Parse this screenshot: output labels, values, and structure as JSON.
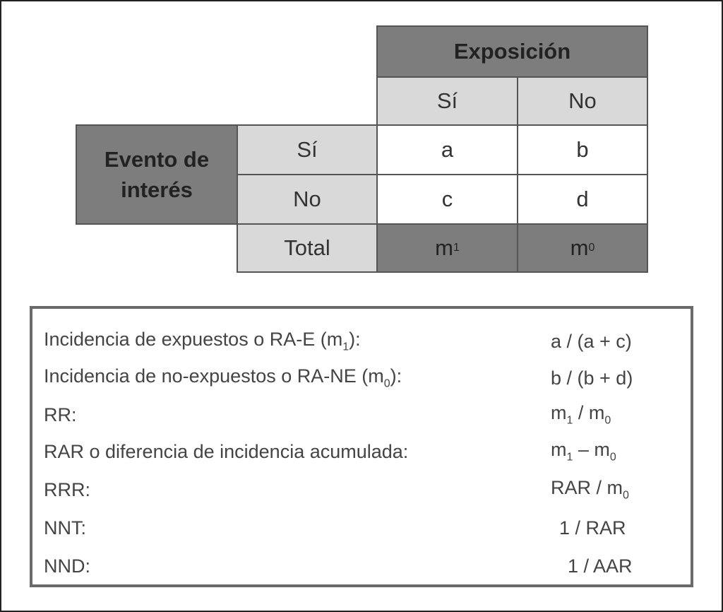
{
  "table": {
    "exposure_header": "Exposición",
    "exposure_cols": [
      "Sí",
      "No"
    ],
    "event_header": "Evento de interés",
    "row_labels": [
      "Sí",
      "No",
      "Total"
    ],
    "cells": [
      [
        "a",
        "b"
      ],
      [
        "c",
        "d"
      ]
    ],
    "totals": [
      {
        "base": "m",
        "sub": "1"
      },
      {
        "base": "m",
        "sub": "0"
      }
    ]
  },
  "formulas": [
    {
      "label": "Incidencia de expuestos o RA-E (m",
      "label_sub": "1",
      "label_end": "):",
      "value": "a / (a + c)"
    },
    {
      "label": "Incidencia de no-expuestos o RA-NE (m",
      "label_sub": "0",
      "label_end": "):",
      "value": "b / (b + d)"
    },
    {
      "label": "RR:",
      "value_html": [
        "m",
        "1",
        " / m",
        "0"
      ]
    },
    {
      "label": "RAR o diferencia de incidencia acumulada:",
      "value_html": [
        "m",
        "1",
        " – m",
        "0"
      ]
    },
    {
      "label": "RRR:",
      "value_html": [
        "RAR / m",
        "0"
      ]
    },
    {
      "label": "NNT:",
      "value": "1 / RAR"
    },
    {
      "label": "NND:",
      "value": "1 / AAR"
    }
  ]
}
